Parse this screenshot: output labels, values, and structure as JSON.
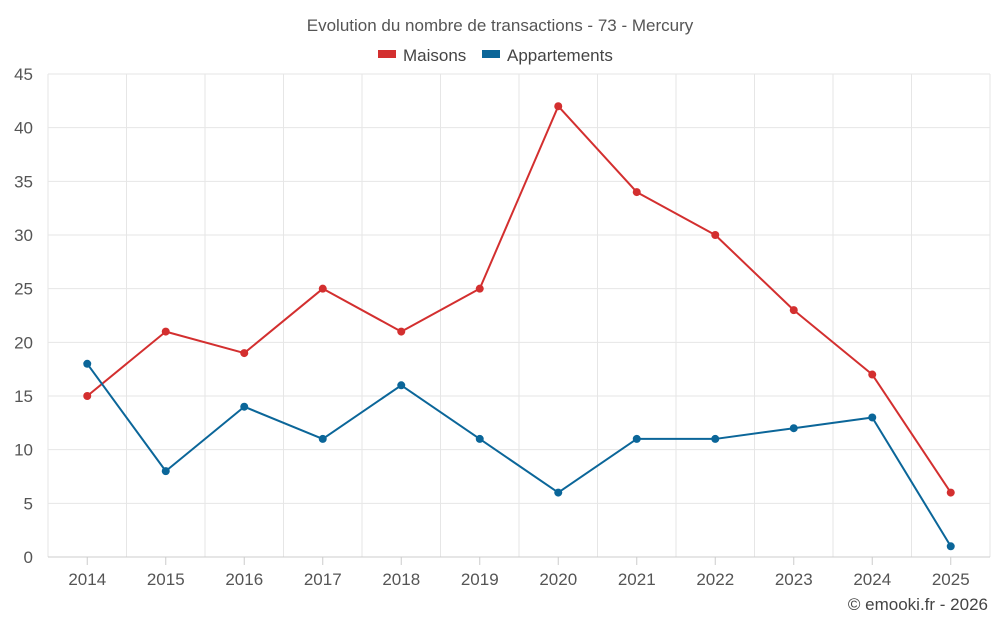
{
  "chart_data": {
    "type": "line",
    "title": "Evolution du nombre de transactions - 73 - Mercury",
    "categories": [
      "2014",
      "2015",
      "2016",
      "2017",
      "2018",
      "2019",
      "2020",
      "2021",
      "2022",
      "2023",
      "2024",
      "2025"
    ],
    "series": [
      {
        "name": "Maisons",
        "color": "#d32f2f",
        "values": [
          15,
          21,
          19,
          25,
          21,
          25,
          42,
          34,
          30,
          23,
          17,
          6
        ]
      },
      {
        "name": "Appartements",
        "color": "#0b6699",
        "values": [
          18,
          8,
          14,
          11,
          16,
          11,
          6,
          11,
          11,
          12,
          13,
          1
        ]
      }
    ],
    "ylim": [
      0,
      45
    ],
    "yticks": [
      0,
      5,
      10,
      15,
      20,
      25,
      30,
      35,
      40,
      45
    ],
    "xlabel": "",
    "ylabel": "",
    "grid": true,
    "legend": "top-center"
  },
  "credit": "© emooki.fr - 2026"
}
